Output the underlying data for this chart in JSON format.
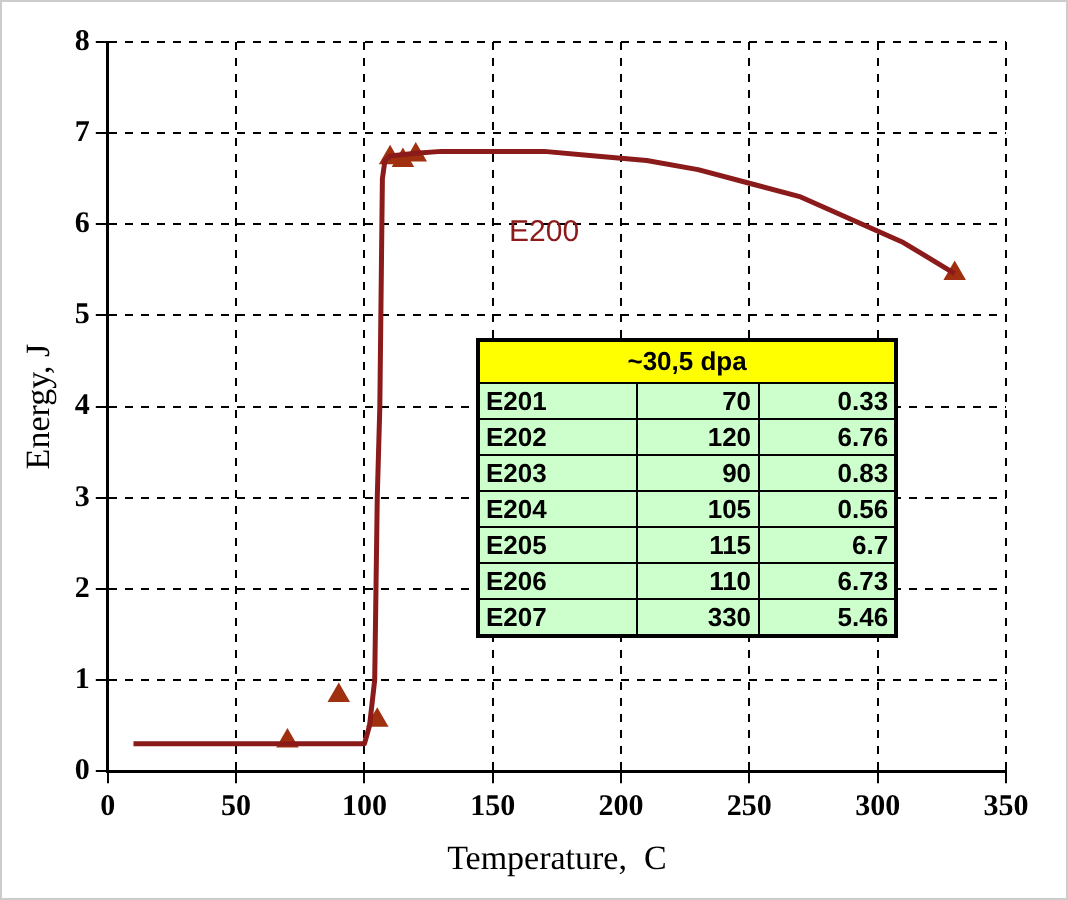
{
  "chart_data": {
    "type": "scatter",
    "xlabel": "Temperature,  C",
    "ylabel": "Energy, J",
    "xlim": [
      0,
      350
    ],
    "xticks": [
      0,
      50,
      100,
      150,
      200,
      250,
      300,
      350
    ],
    "ylim": [
      0,
      8
    ],
    "yticks": [
      0,
      1,
      2,
      3,
      4,
      5,
      6,
      7,
      8
    ],
    "grid": true,
    "legend": false,
    "annotations": [
      "~30,5 dpa",
      "E201",
      "70",
      "0.33",
      "E202",
      "120",
      "6.76",
      "E203",
      "90",
      "0.83",
      "E204",
      "105",
      "0.56",
      "E205",
      "115",
      "6.7",
      "E206",
      "110",
      "6.73",
      "E207",
      "330",
      "5.46"
    ],
    "series": [
      {
        "name": "E200",
        "type": "line",
        "color": "#8b1a1a",
        "marker": "none",
        "line_style": "solid",
        "x": [
          10,
          20,
          30,
          40,
          50,
          60,
          70,
          80,
          90,
          100,
          102,
          104,
          105,
          106,
          107,
          108,
          110,
          120,
          130,
          150,
          170,
          190,
          210,
          230,
          250,
          270,
          290,
          310,
          330
        ],
        "values": [
          0.3,
          0.3,
          0.3,
          0.3,
          0.3,
          0.3,
          0.3,
          0.3,
          0.3,
          0.3,
          0.5,
          1,
          3,
          4,
          6.5,
          6.7,
          6.75,
          6.78,
          6.8,
          6.8,
          6.8,
          6.75,
          6.7,
          6.6,
          6.45,
          6.3,
          6.05,
          5.8,
          5.46
        ]
      },
      {
        "color": "#a0300f",
        "marker": "triangle",
        "x": [
          70,
          120,
          90,
          105,
          115,
          110,
          330
        ],
        "values": [
          0.33,
          6.76,
          0.83,
          0.56,
          6.7,
          6.73,
          5.46
        ]
      }
    ]
  }
}
